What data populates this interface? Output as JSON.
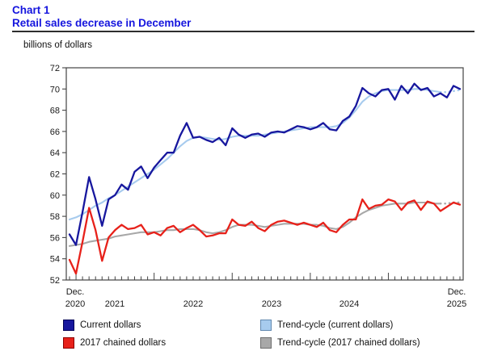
{
  "header": {
    "chart_number": "Chart 1",
    "title": "Retail sales decrease in December"
  },
  "colors": {
    "title_blue": "#1515DE",
    "frame": "#444444",
    "current_dollars": "#17179E",
    "chained_dollars": "#E7211A",
    "trend_current": "#A7CBEE",
    "trend_chained": "#A8A8A8"
  },
  "chart_data": {
    "type": "line",
    "title": "Chart 1",
    "subtitle": "Retail sales decrease in December",
    "ylabel": "billions of dollars",
    "xlabel": "",
    "ylim": [
      52,
      72
    ],
    "ytick_step": 2,
    "grid": false,
    "legend_position": "bottom",
    "n_points": 61,
    "x_frequency": "monthly",
    "x_range": [
      "Dec 2020",
      "Dec 2025"
    ],
    "x_axis": {
      "start": [
        "Dec.",
        "2020"
      ],
      "years": [
        "2021",
        "2022",
        "2023",
        "2024"
      ],
      "end": [
        "Dec.",
        "2025"
      ]
    },
    "series": [
      {
        "name": "Current dollars",
        "color": "#17179E",
        "swatch_border": "#000055",
        "trend": false,
        "values": [
          56.3,
          55.3,
          58.4,
          61.7,
          59.6,
          57.1,
          59.6,
          60.0,
          61.0,
          60.5,
          62.2,
          62.7,
          61.6,
          62.6,
          63.3,
          64.0,
          64.0,
          65.6,
          66.8,
          65.4,
          65.5,
          65.2,
          65.0,
          65.4,
          64.7,
          66.3,
          65.7,
          65.4,
          65.7,
          65.8,
          65.5,
          65.9,
          66.0,
          65.9,
          66.2,
          66.5,
          66.4,
          66.2,
          66.4,
          66.8,
          66.2,
          66.1,
          67.0,
          67.4,
          68.4,
          70.1,
          69.6,
          69.3,
          69.9,
          70.0,
          69.0,
          70.3,
          69.6,
          70.5,
          69.9,
          70.1,
          69.3,
          69.6,
          69.2,
          70.3,
          70.0
        ]
      },
      {
        "name": "2017 chained dollars",
        "color": "#E7211A",
        "swatch_border": "#8B0000",
        "trend": false,
        "values": [
          53.9,
          52.6,
          55.6,
          58.8,
          56.7,
          53.8,
          56.0,
          56.7,
          57.2,
          56.8,
          56.9,
          57.2,
          56.3,
          56.5,
          56.2,
          56.9,
          57.1,
          56.5,
          56.9,
          57.2,
          56.7,
          56.1,
          56.2,
          56.4,
          56.4,
          57.7,
          57.2,
          57.1,
          57.5,
          56.9,
          56.6,
          57.2,
          57.5,
          57.6,
          57.4,
          57.2,
          57.4,
          57.2,
          57.0,
          57.4,
          56.7,
          56.5,
          57.2,
          57.7,
          57.7,
          59.6,
          58.7,
          59.0,
          59.1,
          59.6,
          59.4,
          58.6,
          59.3,
          59.5,
          58.6,
          59.4,
          59.2,
          58.5,
          58.9,
          59.3,
          59.1
        ]
      },
      {
        "name": "Trend-cycle (current dollars)",
        "color": "#A7CBEE",
        "swatch_border": "#6289B0",
        "trend": true,
        "values": [
          57.7,
          57.9,
          58.2,
          58.6,
          59.0,
          59.3,
          59.7,
          60.0,
          60.4,
          60.8,
          61.2,
          61.6,
          62.0,
          62.4,
          62.9,
          63.4,
          64.0,
          64.6,
          65.1,
          65.4,
          65.5,
          65.4,
          65.3,
          65.2,
          65.3,
          65.5,
          65.6,
          65.6,
          65.6,
          65.6,
          65.7,
          65.8,
          65.9,
          66.0,
          66.1,
          66.2,
          66.3,
          66.4,
          66.4,
          66.4,
          66.4,
          66.5,
          66.8,
          67.3,
          68.0,
          68.8,
          69.3,
          69.6,
          69.8,
          69.9,
          69.9,
          69.9,
          69.9,
          70.0,
          70.0,
          69.9,
          69.8,
          69.7,
          69.7,
          69.8,
          69.9
        ]
      },
      {
        "name": "Trend-cycle (2017 chained dollars)",
        "color": "#A8A8A8",
        "swatch_border": "#6E6E6E",
        "trend": true,
        "values": [
          55.2,
          55.3,
          55.4,
          55.6,
          55.7,
          55.8,
          55.9,
          56.1,
          56.2,
          56.3,
          56.4,
          56.5,
          56.5,
          56.5,
          56.6,
          56.7,
          56.7,
          56.8,
          56.8,
          56.8,
          56.7,
          56.5,
          56.4,
          56.5,
          56.7,
          57.0,
          57.2,
          57.2,
          57.2,
          57.1,
          57.0,
          57.1,
          57.2,
          57.3,
          57.3,
          57.3,
          57.3,
          57.2,
          57.2,
          57.1,
          56.9,
          56.8,
          57.0,
          57.4,
          57.9,
          58.3,
          58.6,
          58.8,
          59.0,
          59.1,
          59.2,
          59.2,
          59.2,
          59.3,
          59.3,
          59.3,
          59.2,
          59.2,
          59.2,
          59.3,
          59.3
        ]
      }
    ]
  }
}
